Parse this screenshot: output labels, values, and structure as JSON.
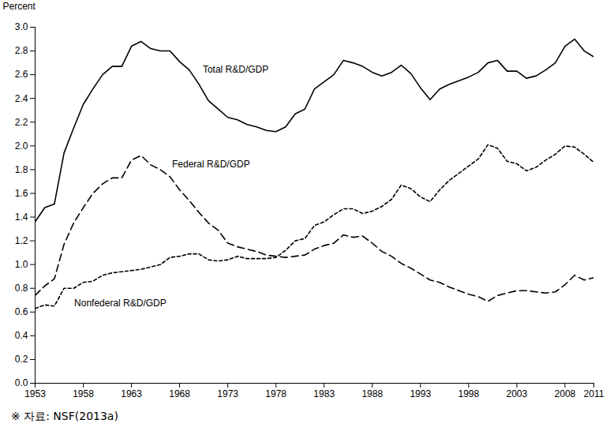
{
  "chart_data": {
    "type": "line",
    "y_label": "Percent",
    "caption": "※ 자료: NSF(2013a)",
    "x": [
      1953,
      1954,
      1955,
      1956,
      1957,
      1958,
      1959,
      1960,
      1961,
      1962,
      1963,
      1964,
      1965,
      1966,
      1967,
      1968,
      1969,
      1970,
      1971,
      1972,
      1973,
      1974,
      1975,
      1976,
      1977,
      1978,
      1979,
      1980,
      1981,
      1982,
      1983,
      1984,
      1985,
      1986,
      1987,
      1988,
      1989,
      1990,
      1991,
      1992,
      1993,
      1994,
      1995,
      1996,
      1997,
      1998,
      1999,
      2000,
      2001,
      2002,
      2003,
      2004,
      2005,
      2006,
      2007,
      2008,
      2009,
      2010,
      2011
    ],
    "series": [
      {
        "name": "Total R&D/GDP",
        "color": "#000000",
        "line_style": "solid",
        "values": [
          1.36,
          1.48,
          1.51,
          1.94,
          2.15,
          2.35,
          2.48,
          2.6,
          2.67,
          2.67,
          2.84,
          2.88,
          2.82,
          2.8,
          2.8,
          2.71,
          2.64,
          2.52,
          2.38,
          2.31,
          2.24,
          2.22,
          2.18,
          2.16,
          2.13,
          2.12,
          2.16,
          2.27,
          2.31,
          2.48,
          2.54,
          2.6,
          2.72,
          2.7,
          2.67,
          2.62,
          2.59,
          2.62,
          2.68,
          2.61,
          2.49,
          2.39,
          2.48,
          2.52,
          2.55,
          2.58,
          2.62,
          2.7,
          2.72,
          2.63,
          2.63,
          2.57,
          2.59,
          2.64,
          2.7,
          2.84,
          2.9,
          2.8,
          2.75
        ]
      },
      {
        "name": "Federal R&D/GDP",
        "color": "#000000",
        "line_style": "longdash",
        "values": [
          0.74,
          0.82,
          0.88,
          1.17,
          1.35,
          1.48,
          1.6,
          1.68,
          1.73,
          1.73,
          1.88,
          1.92,
          1.84,
          1.8,
          1.74,
          1.63,
          1.54,
          1.44,
          1.35,
          1.29,
          1.18,
          1.15,
          1.13,
          1.11,
          1.08,
          1.07,
          1.06,
          1.07,
          1.08,
          1.13,
          1.16,
          1.18,
          1.25,
          1.23,
          1.24,
          1.18,
          1.11,
          1.07,
          1.01,
          0.97,
          0.92,
          0.87,
          0.85,
          0.81,
          0.78,
          0.75,
          0.73,
          0.69,
          0.74,
          0.76,
          0.78,
          0.78,
          0.77,
          0.76,
          0.77,
          0.83,
          0.91,
          0.87,
          0.89
        ]
      },
      {
        "name": "Nonfederal R&D/GDP",
        "color": "#000000",
        "line_style": "dashed",
        "values": [
          0.63,
          0.66,
          0.65,
          0.8,
          0.8,
          0.85,
          0.86,
          0.91,
          0.93,
          0.94,
          0.95,
          0.96,
          0.98,
          1.0,
          1.06,
          1.07,
          1.09,
          1.09,
          1.04,
          1.03,
          1.04,
          1.07,
          1.05,
          1.05,
          1.05,
          1.06,
          1.12,
          1.2,
          1.22,
          1.33,
          1.36,
          1.42,
          1.47,
          1.47,
          1.43,
          1.45,
          1.49,
          1.55,
          1.67,
          1.64,
          1.57,
          1.53,
          1.63,
          1.71,
          1.77,
          1.83,
          1.89,
          2.01,
          1.98,
          1.87,
          1.85,
          1.79,
          1.82,
          1.88,
          1.93,
          2.0,
          1.99,
          1.93,
          1.86
        ]
      }
    ],
    "xlim": [
      1953,
      2011
    ],
    "xticks": [
      1953,
      1958,
      1963,
      1968,
      1973,
      1978,
      1983,
      1988,
      1993,
      1998,
      2003,
      2008,
      2011
    ],
    "ylim": [
      0,
      3
    ],
    "yticks": [
      {
        "value": 0,
        "label": "0.0"
      },
      0.2,
      0.4,
      0.6,
      0.8,
      {
        "value": 1,
        "label": "1.0"
      },
      1.2,
      1.4,
      1.6,
      1.8,
      {
        "value": 2,
        "label": "2.0"
      },
      2.2,
      2.4,
      2.6,
      2.8,
      {
        "value": 3,
        "label": "3.0"
      }
    ],
    "grid": false
  }
}
